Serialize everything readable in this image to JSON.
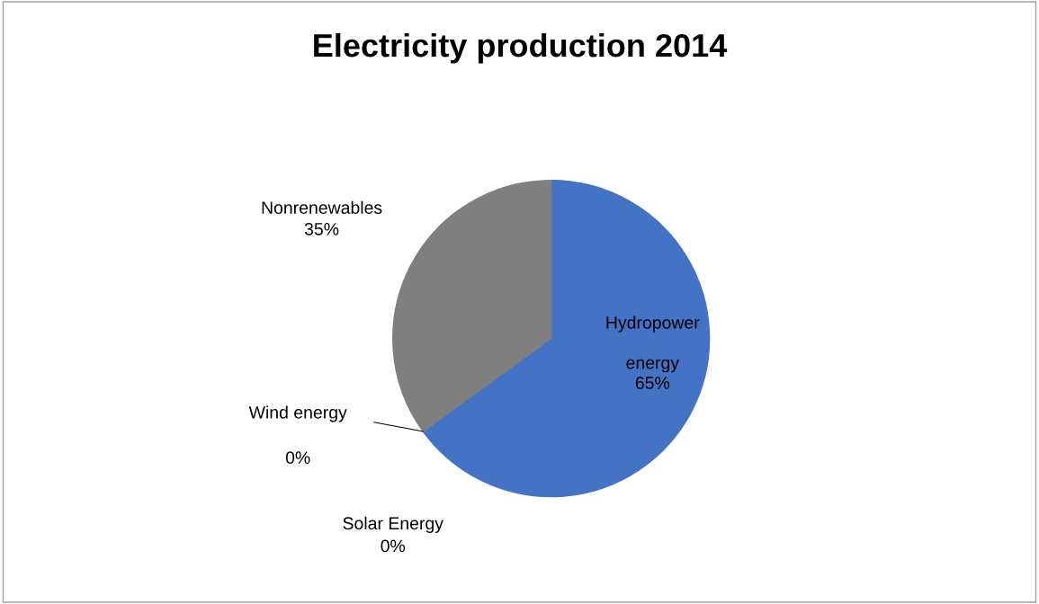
{
  "chart_data": {
    "type": "pie",
    "title": "Electricity production 2014",
    "categories": [
      "Hydropower energy",
      "Solar Energy",
      "Wind energy",
      "Nonrenewables"
    ],
    "values": [
      65,
      0,
      0,
      35
    ],
    "value_labels": [
      "65%",
      "0%",
      "0%",
      "35%"
    ],
    "colors": [
      "#4472c4",
      "#ed7d31",
      "#a5a5a5",
      "#7f7f7f"
    ],
    "legend": false
  }
}
